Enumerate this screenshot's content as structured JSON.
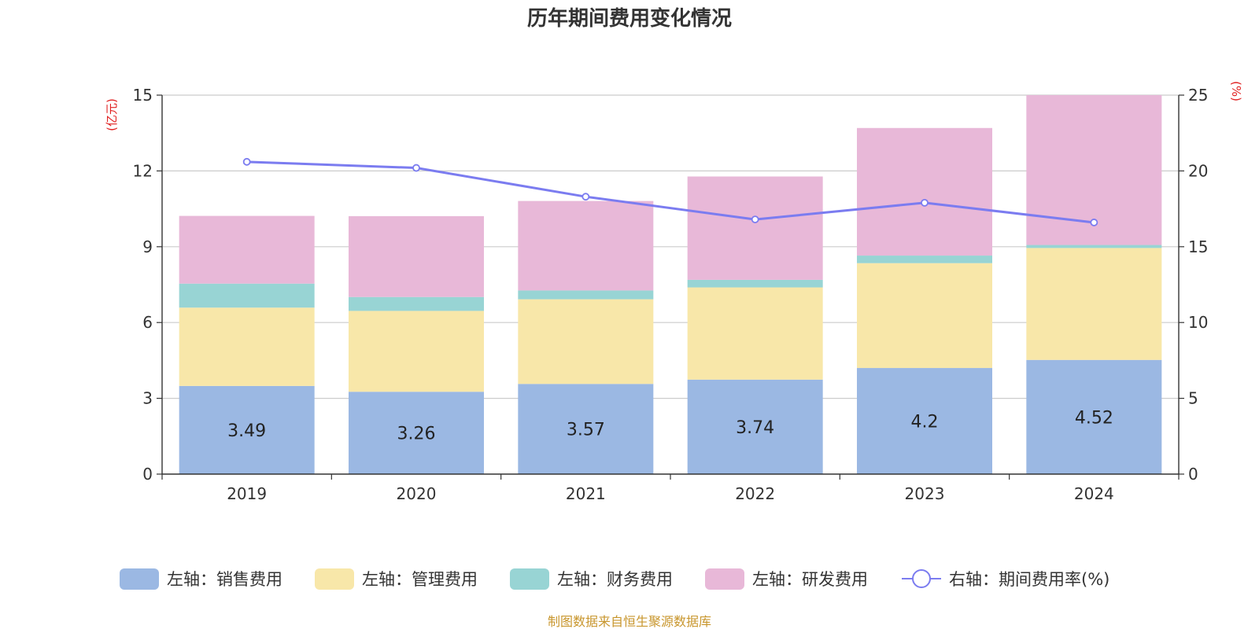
{
  "source_note": "制图数据来自恒生聚源数据库",
  "chart_data": {
    "type": "bar",
    "title": "历年期间费用变化情况",
    "categories": [
      "2019",
      "2020",
      "2021",
      "2022",
      "2023",
      "2024"
    ],
    "y_left": {
      "unit": "(亿元)",
      "ylim": [
        0,
        15
      ],
      "ticks": [
        0,
        3,
        6,
        9,
        12,
        15
      ]
    },
    "y_right": {
      "unit": "(%)",
      "ylim": [
        0,
        25
      ],
      "ticks": [
        0,
        5,
        10,
        15,
        20,
        25
      ]
    },
    "grid": true,
    "legend_position": "bottom",
    "series": [
      {
        "name": "左轴：销售费用",
        "axis": "left",
        "type": "bar",
        "stack": "total",
        "color": "#9bb8e3",
        "values": [
          3.49,
          3.26,
          3.57,
          3.74,
          4.2,
          4.52
        ],
        "data_labels": [
          "3.49",
          "3.26",
          "3.57",
          "3.74",
          "4.2",
          "4.52"
        ]
      },
      {
        "name": "左轴：管理费用",
        "axis": "left",
        "type": "bar",
        "stack": "total",
        "color": "#f8e7a9",
        "values": [
          3.1,
          3.2,
          3.35,
          3.65,
          4.15,
          4.43
        ]
      },
      {
        "name": "左轴：财务费用",
        "axis": "left",
        "type": "bar",
        "stack": "total",
        "color": "#98d4d4",
        "values": [
          0.95,
          0.55,
          0.35,
          0.3,
          0.3,
          0.12
        ]
      },
      {
        "name": "左轴：研发费用",
        "axis": "left",
        "type": "bar",
        "stack": "total",
        "color": "#e8b8d8",
        "values": [
          2.68,
          3.2,
          3.54,
          4.09,
          5.05,
          5.93
        ]
      },
      {
        "name": "右轴：期间费用率(%)",
        "axis": "right",
        "type": "line",
        "color": "#7b7cf0",
        "values": [
          20.6,
          20.2,
          18.3,
          16.8,
          17.9,
          16.6
        ]
      }
    ]
  }
}
